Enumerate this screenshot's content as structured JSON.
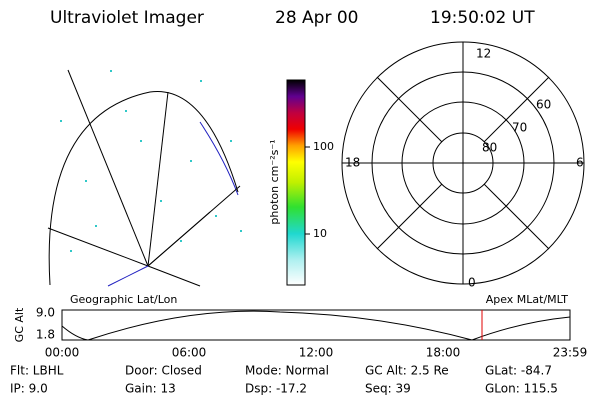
{
  "header": {
    "title": "Ultraviolet Imager",
    "date": "28 Apr 00",
    "time": "19:50:02 UT"
  },
  "colorbar": {
    "label": "photon cm⁻²s⁻¹",
    "ticks": [
      "100",
      "10"
    ]
  },
  "polar": {
    "mlt_labels": [
      "12",
      "18",
      "6",
      "0"
    ],
    "lat_labels": [
      "60",
      "70",
      "80"
    ]
  },
  "strip": {
    "left_title": "Geographic Lat/Lon",
    "right_title": "Apex MLat/MLT",
    "axis_label": "GC Alt",
    "yticks": [
      "9.0",
      "1.8"
    ],
    "xticks": [
      "00:00",
      "06:00",
      "12:00",
      "18:00",
      "23:59"
    ]
  },
  "footer": {
    "rows": [
      [
        "Flt: LBHL",
        "Door: Closed",
        "Mode: Normal",
        "GC Alt: 2.5 Re",
        "GLat: -84.7"
      ],
      [
        "IP:  9.0",
        "Gain: 13",
        "Dsp:  -17.2",
        "Seq: 39",
        "GLon: 115.5"
      ]
    ]
  }
}
